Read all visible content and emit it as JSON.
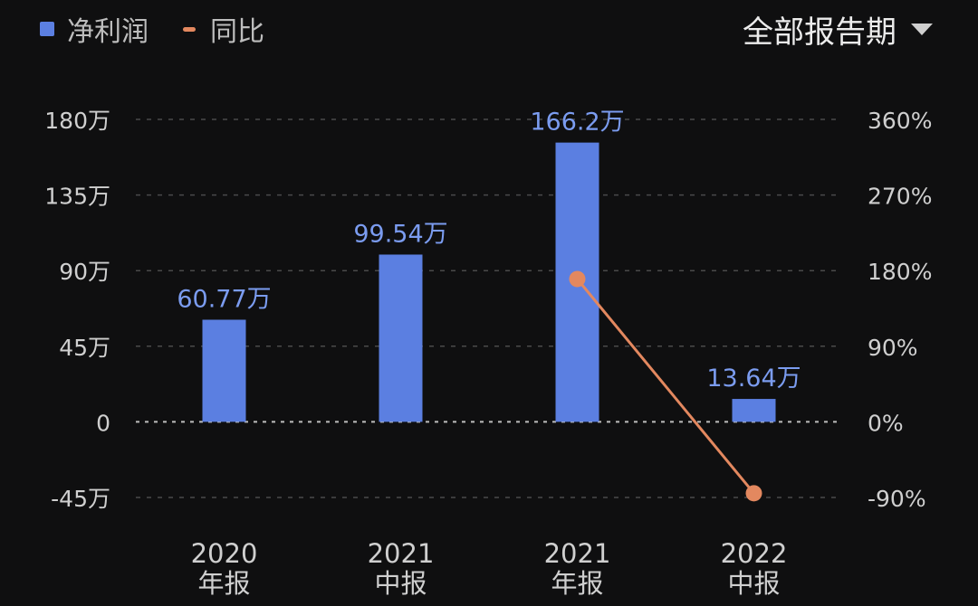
{
  "legend": {
    "bar_label": "净利润",
    "line_label": "同比"
  },
  "period_select": {
    "selected": "全部报告期",
    "icon": "triangle-down-icon"
  },
  "colors": {
    "bar": "#5b7fe1",
    "line": "#e3885f",
    "background": "#0f0f10",
    "grid": "#4a4a4a",
    "axis_text": "#cfcfcf",
    "bar_label": "#7b9cf0"
  },
  "chart_data": {
    "type": "bar",
    "categories": [
      [
        "2020",
        "年报"
      ],
      [
        "2021",
        "中报"
      ],
      [
        "2021",
        "年报"
      ],
      [
        "2022",
        "中报"
      ]
    ],
    "series": [
      {
        "name": "净利润",
        "type": "bar",
        "axis": "left",
        "values": [
          60.77,
          99.54,
          166.2,
          13.64
        ],
        "labels": [
          "60.77万",
          "99.54万",
          "166.2万",
          "13.64万"
        ]
      },
      {
        "name": "同比",
        "type": "line",
        "axis": "right",
        "points": [
          [
            2,
            170
          ],
          [
            3,
            -85
          ]
        ]
      }
    ],
    "y_left": {
      "ylim": [
        -45,
        180
      ],
      "ticks": [
        -45,
        0,
        45,
        90,
        135,
        180
      ],
      "tick_labels": [
        "-45万",
        "0",
        "45万",
        "90万",
        "135万",
        "180万"
      ]
    },
    "y_right": {
      "ylim": [
        -90,
        360
      ],
      "ticks": [
        -90,
        0,
        90,
        180,
        270,
        360
      ],
      "tick_labels": [
        "-90%",
        "0%",
        "90%",
        "180%",
        "270%",
        "360%"
      ]
    },
    "grid": true,
    "legend_position": "top-left"
  }
}
